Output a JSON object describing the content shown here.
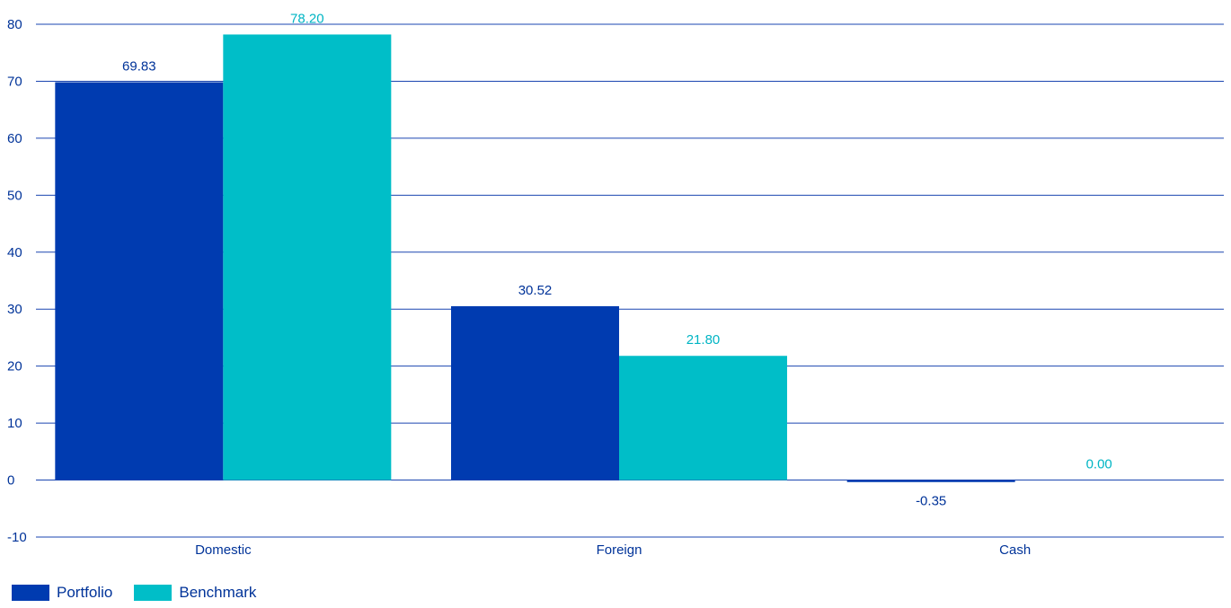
{
  "chart_data": {
    "type": "bar",
    "categories": [
      "Domestic",
      "Foreign",
      "Cash"
    ],
    "series": [
      {
        "name": "Portfolio",
        "color": "#003bb0",
        "labelColor": "#003399",
        "values": [
          69.83,
          30.52,
          -0.35
        ],
        "labels": [
          "69.83",
          "30.52",
          "-0.35"
        ]
      },
      {
        "name": "Benchmark",
        "color": "#00bec8",
        "labelColor": "#00b5c4",
        "values": [
          78.2,
          21.8,
          0.0
        ],
        "labels": [
          "78.20",
          "21.80",
          "0.00"
        ]
      }
    ],
    "ylim": [
      -10,
      80
    ],
    "yticks": [
      80,
      70,
      60,
      50,
      40,
      30,
      20,
      10,
      0,
      -10
    ],
    "grid": true,
    "legend_position": "bottom-left",
    "title": "",
    "xlabel": "",
    "ylabel": ""
  }
}
